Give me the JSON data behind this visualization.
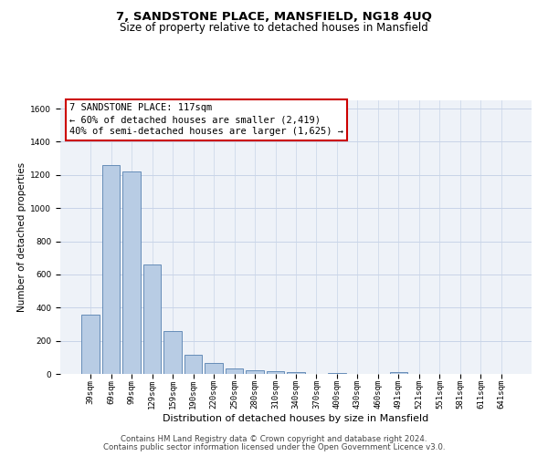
{
  "title": "7, SANDSTONE PLACE, MANSFIELD, NG18 4UQ",
  "subtitle": "Size of property relative to detached houses in Mansfield",
  "xlabel": "Distribution of detached houses by size in Mansfield",
  "ylabel": "Number of detached properties",
  "categories": [
    "39sqm",
    "69sqm",
    "99sqm",
    "129sqm",
    "159sqm",
    "190sqm",
    "220sqm",
    "250sqm",
    "280sqm",
    "310sqm",
    "340sqm",
    "370sqm",
    "400sqm",
    "430sqm",
    "460sqm",
    "491sqm",
    "521sqm",
    "551sqm",
    "581sqm",
    "611sqm",
    "641sqm"
  ],
  "values": [
    360,
    1260,
    1220,
    660,
    260,
    115,
    65,
    35,
    20,
    15,
    10,
    0,
    5,
    0,
    0,
    10,
    0,
    0,
    0,
    0,
    0
  ],
  "bar_color": "#b8cce4",
  "bar_edge_color": "#5580b0",
  "annotation_box_text_line1": "7 SANDSTONE PLACE: 117sqm",
  "annotation_box_text_line2": "← 60% of detached houses are smaller (2,419)",
  "annotation_box_text_line3": "40% of semi-detached houses are larger (1,625) →",
  "annotation_box_color": "#ffffff",
  "annotation_box_edge_color": "#cc0000",
  "ylim": [
    0,
    1650
  ],
  "yticks": [
    0,
    200,
    400,
    600,
    800,
    1000,
    1200,
    1400,
    1600
  ],
  "grid_color": "#c8d4e8",
  "background_color": "#eef2f8",
  "footnote1": "Contains HM Land Registry data © Crown copyright and database right 2024.",
  "footnote2": "Contains public sector information licensed under the Open Government Licence v3.0.",
  "title_fontsize": 9.5,
  "subtitle_fontsize": 8.5,
  "xlabel_fontsize": 8,
  "ylabel_fontsize": 7.5,
  "annotation_fontsize": 7.5,
  "tick_fontsize": 6.5,
  "footnote_fontsize": 6.2
}
